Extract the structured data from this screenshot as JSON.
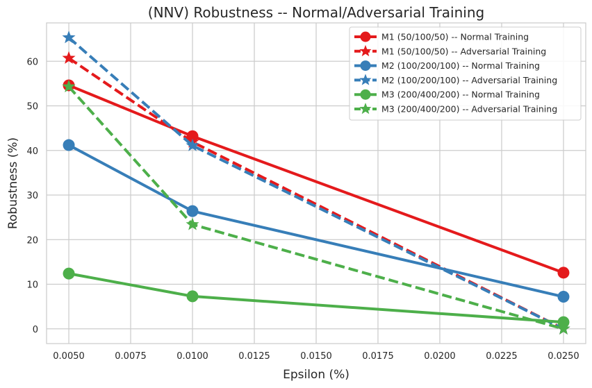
{
  "chart_data": {
    "type": "line",
    "title": "(NNV) Robustness -- Normal/Adversarial Training",
    "xlabel": "Epsilon (%)",
    "ylabel": "Robustness (%)",
    "x": [
      0.005,
      0.01,
      0.025
    ],
    "xlim": [
      0.0041,
      0.0259
    ],
    "ylim": [
      -3.3,
      68.6
    ],
    "xticks": [
      "0.0050",
      "0.0075",
      "0.0100",
      "0.0125",
      "0.0150",
      "0.0175",
      "0.0200",
      "0.0225",
      "0.0250"
    ],
    "xtick_values": [
      0.005,
      0.0075,
      0.01,
      0.0125,
      0.015,
      0.0175,
      0.02,
      0.0225,
      0.025
    ],
    "yticks": [
      "0",
      "10",
      "20",
      "30",
      "40",
      "50",
      "60"
    ],
    "ytick_values": [
      0,
      10,
      20,
      30,
      40,
      50,
      60
    ],
    "grid": true,
    "legend_position": "top-right",
    "series": [
      {
        "name": "M1 (50/100/50) -- Normal Training",
        "values": [
          54.6,
          43.2,
          12.6
        ],
        "color": "#e41a1c",
        "linestyle": "solid",
        "marker": "circle"
      },
      {
        "name": "M1 (50/100/50) -- Adversarial Training",
        "values": [
          60.7,
          41.9,
          0.0
        ],
        "color": "#e41a1c",
        "linestyle": "dashed",
        "marker": "star"
      },
      {
        "name": "M2 (100/200/100) -- Normal Training",
        "values": [
          41.2,
          26.4,
          7.2
        ],
        "color": "#377eb8",
        "linestyle": "solid",
        "marker": "circle"
      },
      {
        "name": "M2 (100/200/100) -- Adversarial Training",
        "values": [
          65.3,
          41.1,
          0.0
        ],
        "color": "#377eb8",
        "linestyle": "dashed",
        "marker": "star"
      },
      {
        "name": "M3 (200/400/200) -- Normal Training",
        "values": [
          12.4,
          7.3,
          1.5
        ],
        "color": "#4daf4a",
        "linestyle": "solid",
        "marker": "circle"
      },
      {
        "name": "M3 (200/400/200) -- Adversarial Training",
        "values": [
          54.3,
          23.4,
          0.0
        ],
        "color": "#4daf4a",
        "linestyle": "dashed",
        "marker": "star"
      }
    ]
  }
}
